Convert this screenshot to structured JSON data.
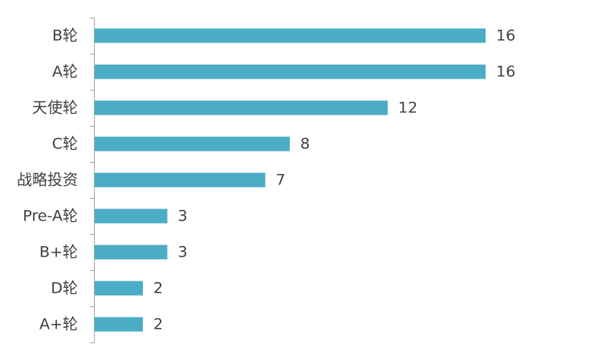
{
  "chart_data": {
    "type": "bar",
    "orientation": "horizontal",
    "categories": [
      "B轮",
      "A轮",
      "天使轮",
      "C轮",
      "战略投资",
      "Pre-A轮",
      "B+轮",
      "D轮",
      "A+轮"
    ],
    "values": [
      16,
      16,
      12,
      8,
      7,
      3,
      3,
      2,
      2
    ],
    "data_labels": [
      "16",
      "16",
      "12",
      "8",
      "7",
      "3",
      "3",
      "2",
      "2"
    ],
    "title": "",
    "xlabel": "",
    "ylabel": "",
    "xlim": [
      0,
      16
    ],
    "grid": false,
    "legend": "none",
    "colors": {
      "bar": "#4bacc6",
      "axis": "#a6a6a6",
      "text": "#404040"
    }
  }
}
